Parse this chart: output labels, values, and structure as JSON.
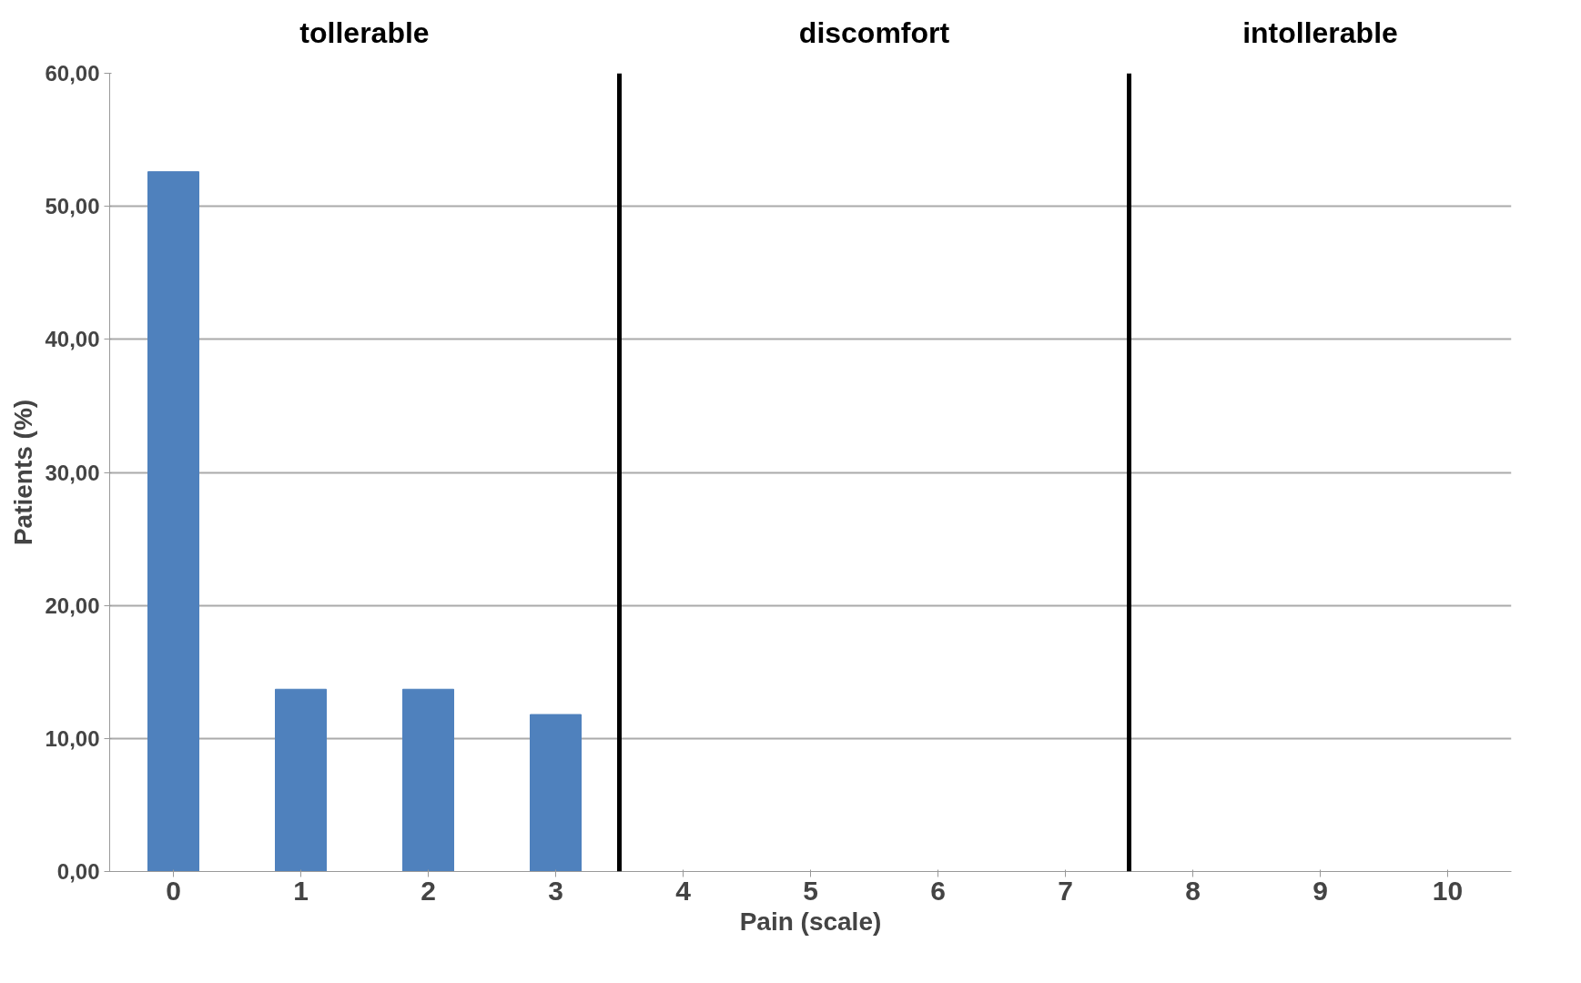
{
  "chart_data": {
    "type": "bar",
    "xlabel": "Pain (scale)",
    "ylabel": "Patients (%)",
    "x": [
      0,
      1,
      2,
      3,
      4,
      5,
      6,
      7,
      8,
      9,
      10
    ],
    "xlim": [
      -0.5,
      10.5
    ],
    "xticks": [
      0,
      1,
      2,
      3,
      4,
      5,
      6,
      7,
      8,
      9,
      10
    ],
    "values": [
      52.6,
      13.7,
      13.7,
      11.8,
      0,
      0,
      0,
      0,
      0,
      0,
      0
    ],
    "color": "#4f81bd",
    "ylim": [
      0,
      60
    ],
    "yticks": [
      {
        "value": 0,
        "label": "0,00"
      },
      {
        "value": 10,
        "label": "10,00"
      },
      {
        "value": 20,
        "label": "20,00"
      },
      {
        "value": 30,
        "label": "30,00"
      },
      {
        "value": 40,
        "label": "40,00"
      },
      {
        "value": 50,
        "label": "50,00"
      },
      {
        "value": 60,
        "label": "60,00"
      }
    ],
    "grid": "y",
    "ref_lines": [
      {
        "axis": "x",
        "value": 3.5,
        "color": "#000000"
      },
      {
        "axis": "x",
        "value": 7.5,
        "color": "#000000"
      }
    ],
    "annotations": [
      "tollerable",
      "discomfort",
      "intollerable"
    ]
  }
}
